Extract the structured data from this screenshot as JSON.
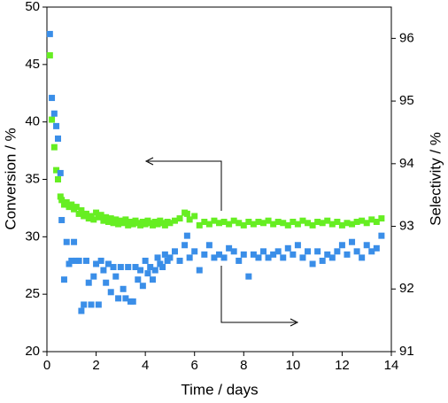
{
  "chart_data": {
    "type": "scatter",
    "x_label": "Time / days",
    "y_label": "Conversion / %",
    "y2_label": "Selectivity / %",
    "xlim": [
      0,
      14
    ],
    "xticks": [
      0,
      2,
      4,
      6,
      8,
      10,
      12,
      14
    ],
    "ylim": [
      20,
      50
    ],
    "yticks": [
      20,
      25,
      30,
      35,
      40,
      45,
      50
    ],
    "y2lim": [
      91,
      96.5
    ],
    "y2ticks": [
      91,
      92,
      93,
      94,
      95,
      96
    ],
    "x": [
      0.12,
      0.2,
      0.3,
      0.38,
      0.45,
      0.55,
      0.6,
      0.7,
      0.8,
      0.9,
      1.0,
      1.1,
      1.2,
      1.3,
      1.4,
      1.5,
      1.6,
      1.7,
      1.8,
      1.9,
      2.0,
      2.1,
      2.2,
      2.3,
      2.4,
      2.5,
      2.6,
      2.7,
      2.8,
      2.9,
      3.0,
      3.1,
      3.2,
      3.3,
      3.4,
      3.5,
      3.6,
      3.7,
      3.8,
      3.9,
      4.0,
      4.1,
      4.2,
      4.3,
      4.4,
      4.5,
      4.6,
      4.7,
      4.8,
      4.9,
      5.0,
      5.2,
      5.4,
      5.6,
      5.7,
      5.8,
      6.0,
      6.2,
      6.4,
      6.6,
      6.8,
      7.0,
      7.2,
      7.4,
      7.6,
      7.8,
      8.0,
      8.2,
      8.4,
      8.6,
      8.8,
      9.0,
      9.2,
      9.4,
      9.6,
      9.8,
      10.0,
      10.2,
      10.4,
      10.6,
      10.8,
      11.0,
      11.2,
      11.4,
      11.6,
      11.8,
      12.0,
      12.2,
      12.4,
      12.6,
      12.8,
      13.0,
      13.2,
      13.4,
      13.6
    ],
    "series": [
      {
        "color": "#66ee22",
        "axis": "y",
        "values": [
          45.8,
          40.2,
          37.8,
          35.8,
          35.0,
          33.5,
          33.2,
          32.8,
          33.0,
          32.6,
          32.8,
          32.4,
          32.6,
          32.0,
          32.3,
          31.8,
          32.0,
          31.6,
          31.8,
          31.5,
          32.1,
          31.7,
          31.9,
          31.4,
          31.7,
          31.3,
          31.6,
          31.2,
          31.5,
          31.1,
          31.4,
          31.2,
          31.5,
          31.0,
          31.3,
          31.1,
          31.4,
          31.2,
          31.0,
          31.3,
          31.1,
          31.4,
          31.2,
          31.0,
          31.3,
          31.1,
          31.4,
          31.2,
          31.0,
          31.3,
          31.2,
          31.4,
          31.6,
          32.1,
          32.0,
          31.5,
          31.8,
          31.0,
          31.3,
          31.1,
          31.4,
          31.2,
          31.3,
          31.1,
          31.4,
          31.2,
          31.0,
          31.3,
          31.1,
          31.3,
          31.2,
          31.4,
          31.1,
          31.3,
          31.2,
          31.0,
          31.3,
          31.1,
          31.4,
          31.2,
          31.0,
          31.3,
          31.2,
          31.4,
          31.1,
          31.3,
          31.0,
          31.2,
          31.1,
          31.3,
          31.4,
          31.2,
          31.5,
          31.3,
          31.6
        ]
      },
      {
        "color": "#3a8ee8",
        "axis": "y2",
        "values": [
          96.07,
          95.05,
          94.8,
          94.6,
          94.4,
          93.85,
          93.1,
          92.15,
          92.75,
          92.4,
          92.45,
          92.75,
          92.45,
          92.45,
          91.65,
          91.75,
          92.45,
          92.1,
          91.75,
          92.2,
          92.4,
          91.75,
          92.45,
          92.3,
          92.1,
          92.4,
          91.95,
          92.35,
          92.2,
          91.85,
          92.35,
          92.0,
          91.85,
          92.35,
          91.8,
          91.8,
          92.35,
          92.15,
          92.3,
          92.05,
          92.45,
          92.25,
          92.35,
          92.15,
          92.3,
          92.5,
          92.4,
          92.35,
          92.55,
          92.45,
          92.5,
          92.6,
          92.45,
          92.7,
          92.85,
          92.5,
          92.6,
          92.3,
          92.55,
          92.7,
          92.5,
          92.55,
          92.5,
          92.65,
          92.6,
          92.45,
          92.55,
          92.2,
          92.55,
          92.5,
          92.6,
          92.5,
          92.55,
          92.6,
          92.5,
          92.65,
          92.55,
          92.7,
          92.5,
          92.6,
          92.4,
          92.6,
          92.45,
          92.55,
          92.5,
          92.6,
          92.7,
          92.55,
          92.75,
          92.6,
          92.5,
          92.7,
          92.6,
          92.65,
          92.85
        ]
      }
    ]
  }
}
